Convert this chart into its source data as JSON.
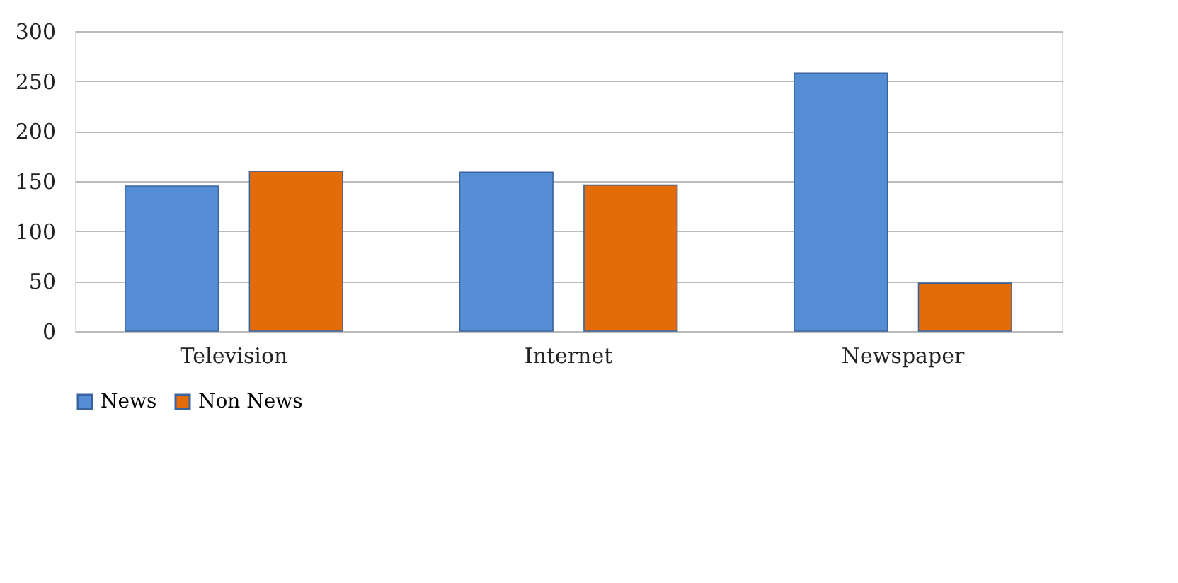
{
  "chart_data": {
    "type": "bar",
    "categories": [
      "Television",
      "Internet",
      "Newspaper"
    ],
    "series": [
      {
        "name": "News",
        "color": "#558ed5",
        "values": [
          145,
          159,
          258
        ]
      },
      {
        "name": "Non News",
        "color": "#e36c09",
        "values": [
          160,
          146,
          48
        ]
      }
    ],
    "ylim": [
      0,
      300
    ],
    "yticks": [
      0,
      50,
      100,
      150,
      200,
      250,
      300
    ],
    "grid": "y",
    "legend": "bottom"
  }
}
